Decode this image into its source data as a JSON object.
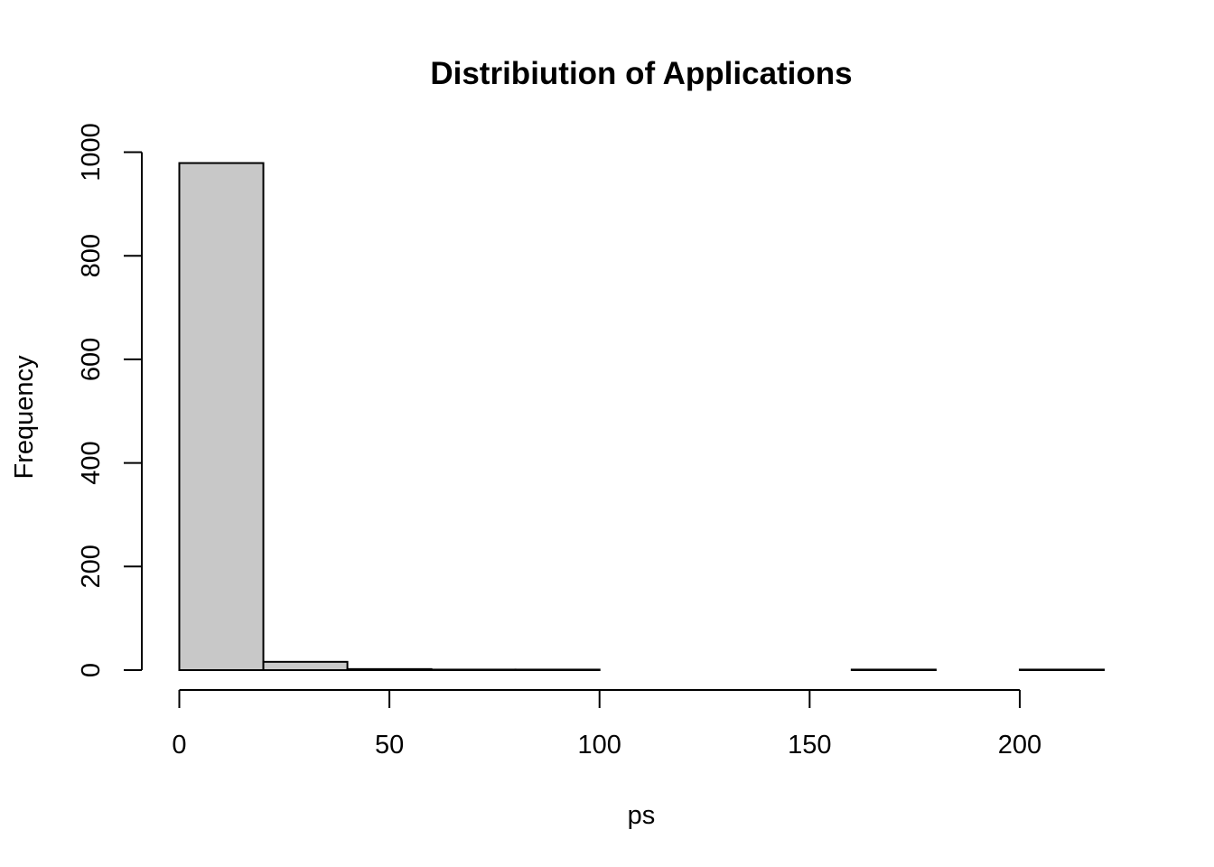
{
  "chart_data": {
    "type": "bar",
    "title": "Distribiution of Applications",
    "xlabel": "ps",
    "ylabel": "Frequency",
    "bin_edges": [
      0,
      20,
      40,
      60,
      80,
      100,
      120,
      140,
      160,
      180,
      200,
      220
    ],
    "values": [
      979,
      16,
      2,
      1,
      1,
      0,
      0,
      0,
      1,
      0,
      1
    ],
    "xlim": [
      0,
      220
    ],
    "ylim": [
      0,
      1000
    ],
    "x_ticks": [
      0,
      50,
      100,
      150,
      200
    ],
    "y_ticks": [
      0,
      200,
      400,
      600,
      800,
      1000
    ],
    "bar_color": "#c8c8c8",
    "grid": false,
    "legend": "none"
  }
}
